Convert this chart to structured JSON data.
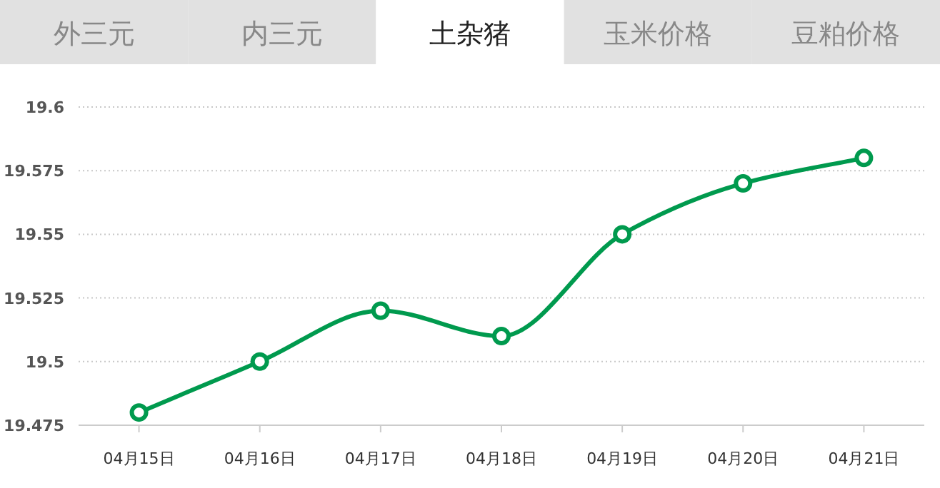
{
  "chart_data": {
    "type": "line",
    "title": "土杂猪",
    "annotations": [
      "外三元",
      "内三元",
      "玉米价格",
      "豆粕价格"
    ],
    "categories": [
      "04月15日",
      "04月16日",
      "04月17日",
      "04月18日",
      "04月19日",
      "04月20日",
      "04月21日"
    ],
    "values": [
      19.48,
      19.5,
      19.52,
      19.51,
      19.55,
      19.57,
      19.58
    ],
    "color": "#009a4e",
    "ylim": [
      19.475,
      19.6
    ],
    "yticks": [
      19.475,
      19.5,
      19.525,
      19.55,
      19.575,
      19.6
    ],
    "grid": "y",
    "marker": "circle"
  }
}
